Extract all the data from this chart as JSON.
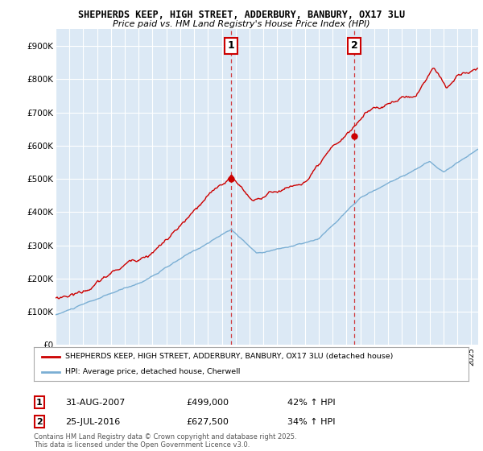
{
  "title1": "SHEPHERDS KEEP, HIGH STREET, ADDERBURY, BANBURY, OX17 3LU",
  "title2": "Price paid vs. HM Land Registry's House Price Index (HPI)",
  "background_color": "#dce9f5",
  "plot_bg_color": "#dce9f5",
  "fig_bg_color": "#ffffff",
  "red_line_color": "#cc0000",
  "blue_line_color": "#7bafd4",
  "grid_color": "#ffffff",
  "marker1_date_x": 2007.667,
  "marker1_y": 499000,
  "marker1_label": "1",
  "marker2_date_x": 2016.558,
  "marker2_y": 627500,
  "marker2_label": "2",
  "xmin": 1995,
  "xmax": 2025.5,
  "ymin": 0,
  "ymax": 950000,
  "yticks": [
    0,
    100000,
    200000,
    300000,
    400000,
    500000,
    600000,
    700000,
    800000,
    900000
  ],
  "ytick_labels": [
    "£0",
    "£100K",
    "£200K",
    "£300K",
    "£400K",
    "£500K",
    "£600K",
    "£700K",
    "£800K",
    "£900K"
  ],
  "legend1_label": "SHEPHERDS KEEP, HIGH STREET, ADDERBURY, BANBURY, OX17 3LU (detached house)",
  "legend2_label": "HPI: Average price, detached house, Cherwell",
  "annotation1_date": "31-AUG-2007",
  "annotation1_price": "£499,000",
  "annotation1_hpi": "42% ↑ HPI",
  "annotation2_date": "25-JUL-2016",
  "annotation2_price": "£627,500",
  "annotation2_hpi": "34% ↑ HPI",
  "footer": "Contains HM Land Registry data © Crown copyright and database right 2025.\nThis data is licensed under the Open Government Licence v3.0."
}
